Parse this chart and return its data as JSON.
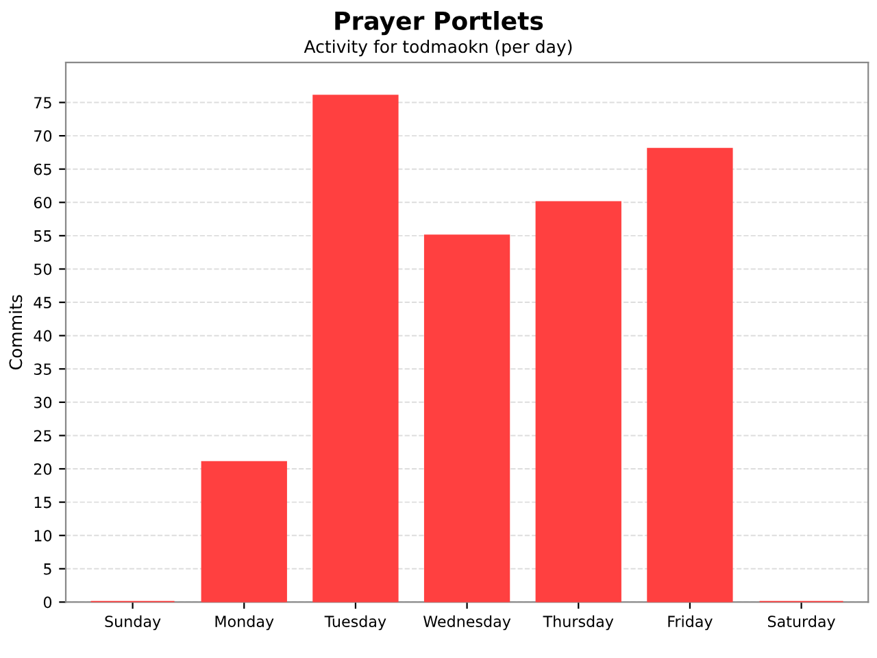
{
  "chart_data": {
    "type": "bar",
    "title": "Prayer Portlets",
    "subtitle": "Activity for todmaokn (per day)",
    "ylabel": "Commits",
    "categories": [
      "Sunday",
      "Monday",
      "Tuesday",
      "Wednesday",
      "Thursday",
      "Friday",
      "Saturday"
    ],
    "values": [
      0,
      21,
      76,
      55,
      60,
      68,
      0
    ],
    "color": "#ff4040",
    "ylim": [
      0,
      81
    ],
    "yticks": [
      0,
      5,
      10,
      15,
      20,
      25,
      30,
      35,
      40,
      45,
      50,
      55,
      60,
      65,
      70,
      75
    ],
    "grid": "y"
  }
}
